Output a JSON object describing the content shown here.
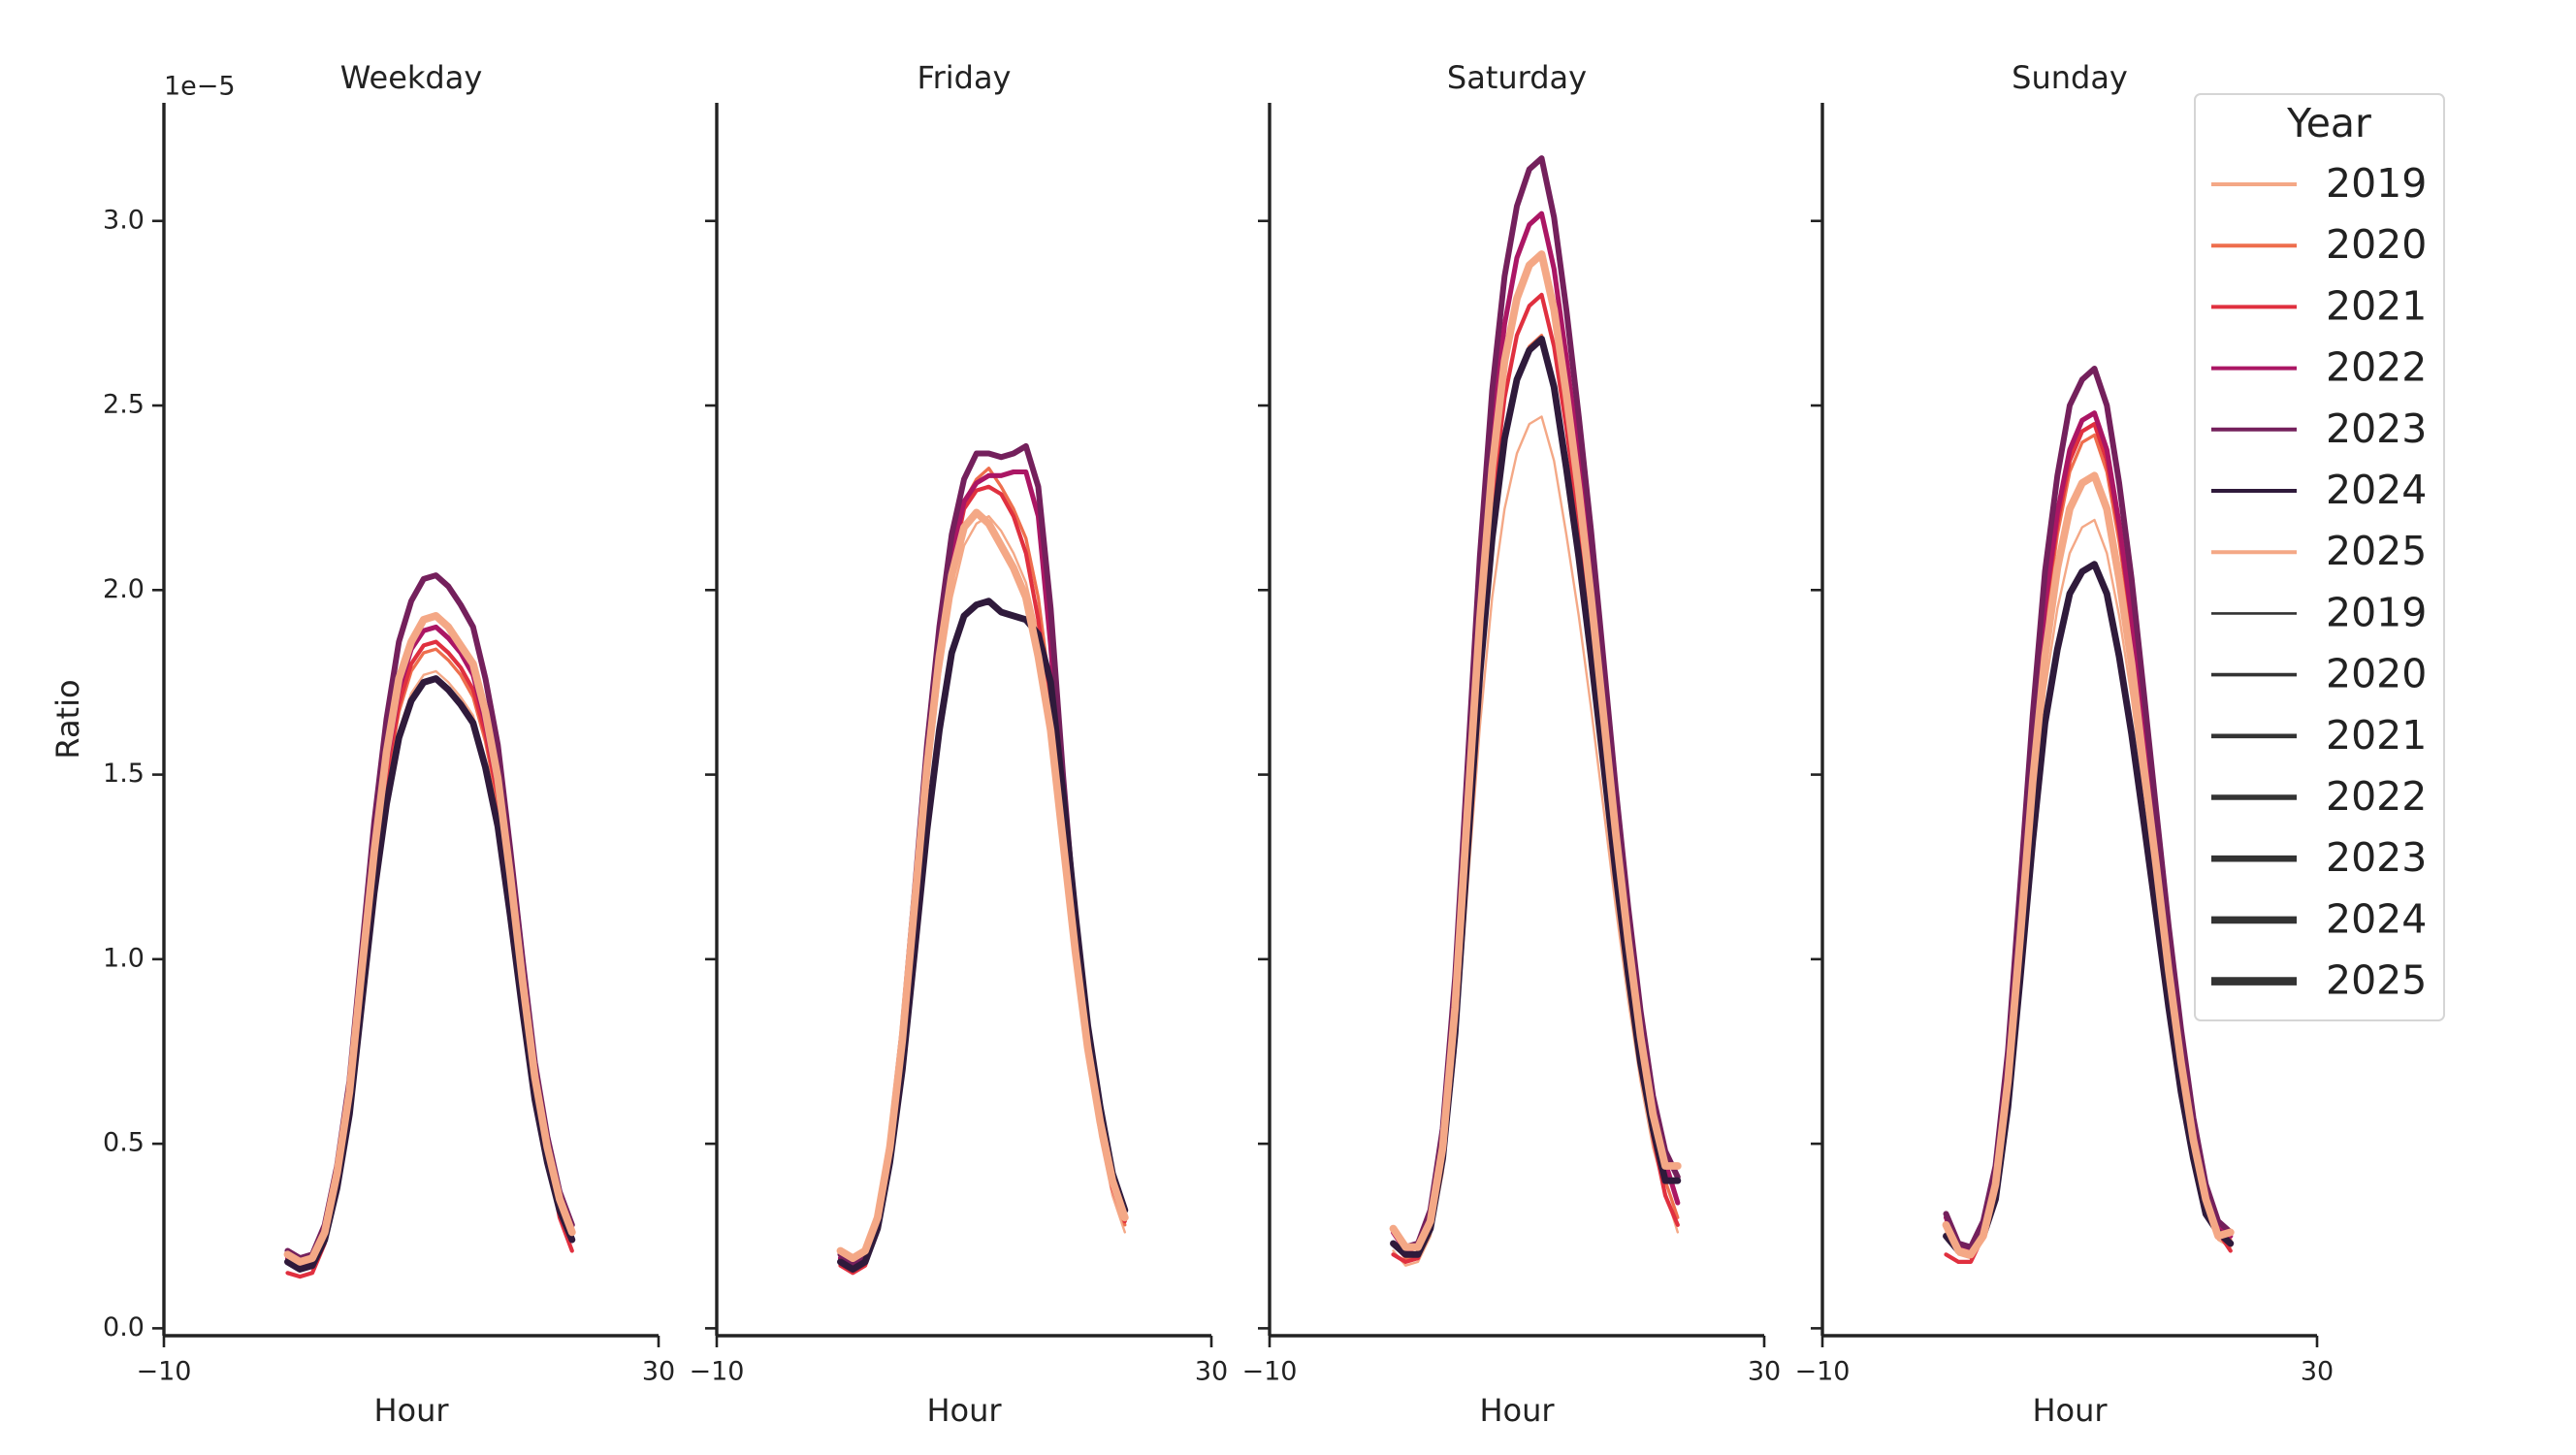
{
  "chart_data": [
    {
      "type": "line",
      "title": "Weekday",
      "xlabel": "Hour",
      "ylabel": "Ratio",
      "offset_text": "1e−5",
      "legend_title": "Year",
      "legend": "upper right",
      "sharey": true,
      "xlim": [
        -10,
        30
      ],
      "xticks": [
        {
          "value": -10,
          "label": "−10"
        },
        30
      ],
      "ylim": [
        -0.02,
        3.32
      ],
      "yticks": [
        {
          "value": 0,
          "label": "0.0"
        },
        0.5,
        {
          "value": 1,
          "label": "1.0"
        },
        1.5,
        {
          "value": 2,
          "label": "2.0"
        },
        2.5,
        {
          "value": 3,
          "label": "3.0"
        }
      ],
      "x": [
        0,
        1,
        2,
        3,
        4,
        5,
        6,
        7,
        8,
        9,
        10,
        11,
        12,
        13,
        14,
        15,
        16,
        17,
        18,
        19,
        20,
        21,
        22,
        23
      ],
      "series": [
        {
          "name": "2019",
          "color": "#f4a886",
          "values": [
            0.18,
            0.16,
            0.17,
            0.24,
            0.38,
            0.59,
            0.89,
            1.19,
            1.43,
            1.62,
            1.72,
            1.77,
            1.78,
            1.75,
            1.71,
            1.66,
            1.54,
            1.37,
            1.13,
            0.87,
            0.63,
            0.45,
            0.32,
            0.24
          ]
        },
        {
          "name": "2020",
          "color": "#ee6e4d",
          "values": [
            0.19,
            0.17,
            0.18,
            0.25,
            0.4,
            0.61,
            0.92,
            1.23,
            1.48,
            1.67,
            1.78,
            1.83,
            1.84,
            1.81,
            1.77,
            1.71,
            1.59,
            1.42,
            1.17,
            0.9,
            0.65,
            0.47,
            0.33,
            0.25
          ]
        },
        {
          "name": "2021",
          "color": "#e0303f",
          "values": [
            0.15,
            0.14,
            0.15,
            0.23,
            0.4,
            0.61,
            0.93,
            1.25,
            1.5,
            1.69,
            1.8,
            1.85,
            1.86,
            1.83,
            1.79,
            1.73,
            1.61,
            1.44,
            1.18,
            0.91,
            0.66,
            0.48,
            0.3,
            0.21
          ]
        },
        {
          "name": "2022",
          "color": "#ab1664",
          "values": [
            0.19,
            0.17,
            0.18,
            0.26,
            0.41,
            0.63,
            0.95,
            1.27,
            1.53,
            1.73,
            1.84,
            1.89,
            1.9,
            1.87,
            1.83,
            1.77,
            1.64,
            1.47,
            1.21,
            0.93,
            0.67,
            0.49,
            0.35,
            0.26
          ]
        },
        {
          "name": "2023",
          "color": "#74205c",
          "values": [
            0.21,
            0.19,
            0.2,
            0.28,
            0.44,
            0.67,
            1.02,
            1.37,
            1.65,
            1.86,
            1.97,
            2.03,
            2.04,
            2.01,
            1.96,
            1.9,
            1.76,
            1.58,
            1.3,
            1.0,
            0.72,
            0.52,
            0.37,
            0.28
          ]
        },
        {
          "name": "2024",
          "color": "#2f1a3b",
          "values": [
            0.18,
            0.16,
            0.17,
            0.24,
            0.38,
            0.58,
            0.88,
            1.18,
            1.42,
            1.6,
            1.7,
            1.75,
            1.76,
            1.73,
            1.69,
            1.64,
            1.52,
            1.36,
            1.12,
            0.86,
            0.62,
            0.45,
            0.32,
            0.24
          ]
        },
        {
          "name": "2025",
          "color": "#f4a886",
          "values": [
            0.2,
            0.18,
            0.19,
            0.26,
            0.42,
            0.64,
            0.97,
            1.29,
            1.56,
            1.76,
            1.86,
            1.92,
            1.93,
            1.9,
            1.85,
            1.8,
            1.67,
            1.49,
            1.23,
            0.94,
            0.68,
            0.49,
            0.35,
            0.26
          ]
        }
      ]
    },
    {
      "type": "line",
      "title": "Friday",
      "xlabel": "Hour",
      "xlim": [
        -10,
        30
      ],
      "xticks": [
        {
          "value": -10,
          "label": "−10"
        },
        30
      ],
      "x": [
        0,
        1,
        2,
        3,
        4,
        5,
        6,
        7,
        8,
        9,
        10,
        11,
        12,
        13,
        14,
        15,
        16,
        17,
        18,
        19,
        20,
        21,
        22,
        23
      ],
      "series": [
        {
          "name": "2019",
          "color": "#f4a886",
          "values": [
            0.2,
            0.18,
            0.2,
            0.29,
            0.47,
            0.75,
            1.1,
            1.46,
            1.76,
            1.98,
            2.12,
            2.18,
            2.2,
            2.16,
            2.1,
            2.02,
            1.88,
            1.65,
            1.32,
            1.0,
            0.73,
            0.52,
            0.36,
            0.26
          ]
        },
        {
          "name": "2020",
          "color": "#ee6e4d",
          "values": [
            0.19,
            0.17,
            0.19,
            0.28,
            0.47,
            0.76,
            1.14,
            1.53,
            1.86,
            2.1,
            2.24,
            2.3,
            2.33,
            2.28,
            2.22,
            2.14,
            1.98,
            1.72,
            1.38,
            1.04,
            0.76,
            0.55,
            0.39,
            0.28
          ]
        },
        {
          "name": "2021",
          "color": "#e0303f",
          "values": [
            0.17,
            0.15,
            0.17,
            0.27,
            0.46,
            0.75,
            1.12,
            1.5,
            1.82,
            2.06,
            2.22,
            2.27,
            2.28,
            2.26,
            2.2,
            2.1,
            1.92,
            1.68,
            1.35,
            1.02,
            0.75,
            0.54,
            0.38,
            0.29
          ]
        },
        {
          "name": "2022",
          "color": "#ab1664",
          "values": [
            0.19,
            0.17,
            0.19,
            0.29,
            0.48,
            0.77,
            1.14,
            1.53,
            1.84,
            2.09,
            2.24,
            2.29,
            2.31,
            2.31,
            2.32,
            2.32,
            2.2,
            1.85,
            1.42,
            1.05,
            0.78,
            0.56,
            0.4,
            0.3
          ]
        },
        {
          "name": "2023",
          "color": "#74205c",
          "values": [
            0.2,
            0.18,
            0.2,
            0.3,
            0.5,
            0.8,
            1.18,
            1.58,
            1.9,
            2.15,
            2.3,
            2.37,
            2.37,
            2.36,
            2.37,
            2.39,
            2.28,
            1.95,
            1.5,
            1.1,
            0.8,
            0.58,
            0.42,
            0.32
          ]
        },
        {
          "name": "2024",
          "color": "#2f1a3b",
          "values": [
            0.18,
            0.16,
            0.18,
            0.27,
            0.45,
            0.7,
            1.02,
            1.35,
            1.62,
            1.83,
            1.93,
            1.96,
            1.97,
            1.94,
            1.93,
            1.92,
            1.88,
            1.75,
            1.45,
            1.12,
            0.82,
            0.6,
            0.42,
            0.32
          ]
        },
        {
          "name": "2025",
          "color": "#f4a886",
          "values": [
            0.21,
            0.19,
            0.21,
            0.3,
            0.49,
            0.78,
            1.15,
            1.52,
            1.82,
            2.04,
            2.17,
            2.21,
            2.18,
            2.12,
            2.06,
            1.98,
            1.82,
            1.62,
            1.32,
            1.02,
            0.76,
            0.56,
            0.4,
            0.3
          ]
        }
      ]
    },
    {
      "type": "line",
      "title": "Saturday",
      "xlabel": "Hour",
      "xlim": [
        -10,
        30
      ],
      "xticks": [
        {
          "value": -10,
          "label": "−10"
        },
        30
      ],
      "x": [
        0,
        1,
        2,
        3,
        4,
        5,
        6,
        7,
        8,
        9,
        10,
        11,
        12,
        13,
        14,
        15,
        16,
        17,
        18,
        19,
        20,
        21,
        22,
        23
      ],
      "series": [
        {
          "name": "2019",
          "color": "#f4a886",
          "values": [
            0.21,
            0.17,
            0.18,
            0.25,
            0.42,
            0.74,
            1.19,
            1.63,
            1.98,
            2.22,
            2.37,
            2.45,
            2.47,
            2.35,
            2.15,
            1.93,
            1.68,
            1.41,
            1.14,
            0.89,
            0.67,
            0.49,
            0.37,
            0.26
          ]
        },
        {
          "name": "2020",
          "color": "#ee6e4d",
          "values": [
            0.23,
            0.19,
            0.19,
            0.27,
            0.46,
            0.81,
            1.29,
            1.78,
            2.15,
            2.42,
            2.58,
            2.66,
            2.69,
            2.56,
            2.34,
            2.1,
            1.83,
            1.53,
            1.24,
            0.97,
            0.73,
            0.54,
            0.4,
            0.3
          ]
        },
        {
          "name": "2021",
          "color": "#e0303f",
          "values": [
            0.2,
            0.18,
            0.19,
            0.28,
            0.48,
            0.84,
            1.34,
            1.85,
            2.24,
            2.52,
            2.69,
            2.77,
            2.8,
            2.66,
            2.44,
            2.18,
            1.9,
            1.6,
            1.29,
            1.01,
            0.76,
            0.52,
            0.36,
            0.28
          ]
        },
        {
          "name": "2022",
          "color": "#ab1664",
          "values": [
            0.26,
            0.21,
            0.22,
            0.3,
            0.51,
            0.91,
            1.45,
            1.99,
            2.42,
            2.72,
            2.9,
            2.99,
            3.02,
            2.87,
            2.63,
            2.36,
            2.05,
            1.72,
            1.39,
            1.09,
            0.82,
            0.6,
            0.45,
            0.34
          ]
        },
        {
          "name": "2023",
          "color": "#74205c",
          "values": [
            0.27,
            0.22,
            0.23,
            0.32,
            0.54,
            0.95,
            1.52,
            2.09,
            2.54,
            2.85,
            3.04,
            3.14,
            3.17,
            3.01,
            2.76,
            2.47,
            2.16,
            1.81,
            1.46,
            1.14,
            0.86,
            0.63,
            0.48,
            0.41
          ]
        },
        {
          "name": "2024",
          "color": "#2f1a3b",
          "values": [
            0.23,
            0.2,
            0.2,
            0.27,
            0.46,
            0.8,
            1.29,
            1.77,
            2.14,
            2.41,
            2.57,
            2.65,
            2.68,
            2.55,
            2.33,
            2.09,
            1.82,
            1.53,
            1.23,
            0.96,
            0.72,
            0.54,
            0.4,
            0.4
          ]
        },
        {
          "name": "2025",
          "color": "#f4a886",
          "values": [
            0.27,
            0.22,
            0.22,
            0.29,
            0.49,
            0.87,
            1.4,
            1.92,
            2.33,
            2.62,
            2.79,
            2.88,
            2.91,
            2.76,
            2.53,
            2.27,
            1.98,
            1.66,
            1.34,
            1.05,
            0.79,
            0.58,
            0.44,
            0.44
          ]
        }
      ]
    },
    {
      "type": "line",
      "title": "Sunday",
      "xlabel": "Hour",
      "xlim": [
        -10,
        30
      ],
      "xticks": [
        {
          "value": -10,
          "label": "−10"
        },
        30
      ],
      "x": [
        0,
        1,
        2,
        3,
        4,
        5,
        6,
        7,
        8,
        9,
        10,
        11,
        12,
        13,
        14,
        15,
        16,
        17,
        18,
        19,
        20,
        21,
        22,
        23
      ],
      "series": [
        {
          "name": "2019",
          "color": "#f4a886",
          "values": [
            0.26,
            0.2,
            0.19,
            0.24,
            0.37,
            0.64,
            1.01,
            1.4,
            1.73,
            1.95,
            2.1,
            2.17,
            2.19,
            2.1,
            1.93,
            1.71,
            1.45,
            1.18,
            0.92,
            0.68,
            0.48,
            0.33,
            0.24,
            0.22
          ]
        },
        {
          "name": "2020",
          "color": "#ee6e4d",
          "values": [
            0.29,
            0.22,
            0.21,
            0.27,
            0.41,
            0.7,
            1.11,
            1.55,
            1.91,
            2.15,
            2.32,
            2.4,
            2.42,
            2.32,
            2.13,
            1.89,
            1.6,
            1.31,
            1.02,
            0.75,
            0.53,
            0.36,
            0.27,
            0.24
          ]
        },
        {
          "name": "2021",
          "color": "#e0303f",
          "values": [
            0.2,
            0.18,
            0.18,
            0.25,
            0.42,
            0.71,
            1.13,
            1.57,
            1.94,
            2.18,
            2.35,
            2.43,
            2.45,
            2.35,
            2.16,
            1.91,
            1.62,
            1.32,
            1.03,
            0.76,
            0.54,
            0.37,
            0.26,
            0.21
          ]
        },
        {
          "name": "2022",
          "color": "#ab1664",
          "values": [
            0.3,
            0.22,
            0.21,
            0.27,
            0.42,
            0.72,
            1.14,
            1.59,
            1.96,
            2.21,
            2.38,
            2.46,
            2.48,
            2.38,
            2.18,
            1.93,
            1.64,
            1.34,
            1.04,
            0.77,
            0.55,
            0.37,
            0.27,
            0.25
          ]
        },
        {
          "name": "2023",
          "color": "#74205c",
          "values": [
            0.31,
            0.23,
            0.22,
            0.29,
            0.44,
            0.75,
            1.2,
            1.66,
            2.05,
            2.31,
            2.5,
            2.57,
            2.6,
            2.5,
            2.29,
            2.03,
            1.72,
            1.4,
            1.09,
            0.81,
            0.57,
            0.39,
            0.29,
            0.26
          ]
        },
        {
          "name": "2024",
          "color": "#2f1a3b",
          "values": [
            0.25,
            0.21,
            0.2,
            0.25,
            0.35,
            0.6,
            0.95,
            1.32,
            1.64,
            1.84,
            1.99,
            2.05,
            2.07,
            1.99,
            1.82,
            1.61,
            1.37,
            1.12,
            0.87,
            0.64,
            0.46,
            0.31,
            0.26,
            0.23
          ]
        },
        {
          "name": "2025",
          "color": "#f4a886",
          "values": [
            0.28,
            0.21,
            0.2,
            0.25,
            0.39,
            0.67,
            1.06,
            1.48,
            1.82,
            2.06,
            2.22,
            2.29,
            2.31,
            2.22,
            2.03,
            1.8,
            1.52,
            1.25,
            0.97,
            0.72,
            0.51,
            0.35,
            0.25,
            0.26
          ]
        }
      ]
    }
  ]
}
